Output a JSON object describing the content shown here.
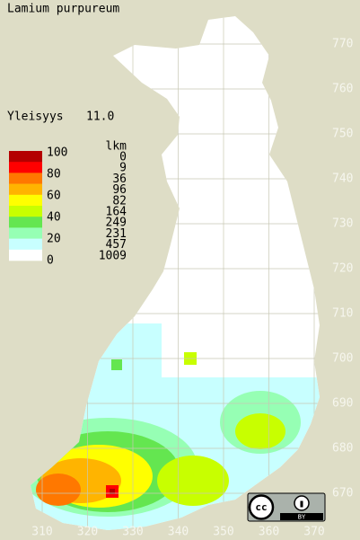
{
  "title": "Lamium purpureum",
  "frequency_label": "Yleisyys",
  "frequency": "11.0",
  "legend": {
    "scale_labels": [
      100,
      80,
      60,
      40,
      20,
      0
    ],
    "count_header": "lkm",
    "classes": [
      {
        "color": "#b40000",
        "count": 0
      },
      {
        "color": "#ff0000",
        "count": 9
      },
      {
        "color": "#ff7800",
        "count": 36
      },
      {
        "color": "#ffb400",
        "count": 96
      },
      {
        "color": "#ffff00",
        "count": 82
      },
      {
        "color": "#c8ff00",
        "count": 164
      },
      {
        "color": "#64e650",
        "count": 249
      },
      {
        "color": "#96ffb4",
        "count": 231
      },
      {
        "color": "#c8ffff",
        "count": 457
      },
      {
        "color": "#ffffff",
        "count": 1009
      }
    ]
  },
  "northing_ticks": [
    770,
    760,
    750,
    740,
    730,
    720,
    710,
    700,
    690,
    680,
    670
  ],
  "easting_ticks": [
    310,
    320,
    330,
    340,
    350,
    360,
    370
  ],
  "license": {
    "cc": "cc",
    "by": "BY"
  }
}
